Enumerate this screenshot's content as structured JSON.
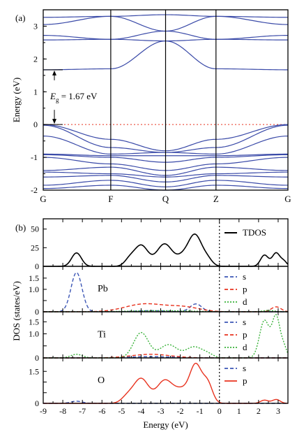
{
  "figure": {
    "panel_a_label": "(a)",
    "panel_b_label": "(b)",
    "colors": {
      "bands": "#3a4aa8",
      "tdos": "#000000",
      "s": "#3b55b5",
      "p": "#e8321e",
      "d": "#3bb33b",
      "fermi_a": "#e8321e",
      "fermi_b": "#000000"
    }
  },
  "chart_data": [
    {
      "type": "line",
      "title": "",
      "xlabel": "",
      "ylabel": "Energy (eV)",
      "ylim": [
        -2,
        3.5
      ],
      "yticks": [
        -2,
        -1,
        0,
        1,
        2,
        3
      ],
      "ytick_labels": [
        "-2",
        "-1",
        "0",
        "1",
        "2",
        "3"
      ],
      "kpath": [
        "G",
        "F",
        "Q",
        "Z",
        "G"
      ],
      "kpath_positions": [
        0,
        0.276,
        0.5,
        0.706,
        1.0
      ],
      "fermi_level": 0,
      "gap_annotation": {
        "label": "E",
        "subscript": "g",
        "value_text": "= 1.67 eV",
        "vbm": 0,
        "cbm": 1.67
      },
      "conduction_bands": [
        {
          "x": [
            0,
            0.276,
            0.5,
            0.706,
            1
          ],
          "y": [
            1.67,
            1.7,
            2.55,
            1.7,
            1.67
          ]
        },
        {
          "x": [
            0,
            0.276,
            0.5,
            0.706,
            1
          ],
          "y": [
            2.58,
            2.6,
            2.55,
            2.6,
            2.58
          ]
        },
        {
          "x": [
            0,
            0.276,
            0.5,
            0.706,
            1
          ],
          "y": [
            2.72,
            2.6,
            2.85,
            2.6,
            2.72
          ]
        },
        {
          "x": [
            0,
            0.276,
            0.5,
            0.706,
            1
          ],
          "y": [
            3.05,
            3.3,
            2.85,
            3.3,
            3.05
          ]
        },
        {
          "x": [
            0,
            0.276,
            0.5,
            0.706,
            1
          ],
          "y": [
            3.27,
            3.3,
            3.35,
            3.3,
            3.27
          ]
        }
      ],
      "valence_bands": [
        {
          "x": [
            0,
            0.276,
            0.5,
            0.706,
            1
          ],
          "y": [
            0,
            -0.45,
            -0.8,
            -0.45,
            0
          ]
        },
        {
          "x": [
            0,
            0.276,
            0.5,
            0.706,
            1
          ],
          "y": [
            -0.02,
            -0.7,
            -0.85,
            -0.7,
            -0.02
          ]
        },
        {
          "x": [
            0,
            0.276,
            0.5,
            0.706,
            1
          ],
          "y": [
            -0.35,
            -0.9,
            -0.85,
            -0.9,
            -0.35
          ]
        },
        {
          "x": [
            0,
            0.276,
            0.5,
            0.706,
            1
          ],
          "y": [
            -0.9,
            -0.95,
            -0.95,
            -0.95,
            -0.9
          ]
        },
        {
          "x": [
            0,
            0.276,
            0.5,
            0.706,
            1
          ],
          "y": [
            -0.92,
            -1.0,
            -1.15,
            -1.0,
            -0.92
          ]
        },
        {
          "x": [
            0,
            0.276,
            0.5,
            0.706,
            1
          ],
          "y": [
            -1.0,
            -1.2,
            -1.4,
            -1.2,
            -1.0
          ]
        },
        {
          "x": [
            0,
            0.276,
            0.5,
            0.706,
            1
          ],
          "y": [
            -1.4,
            -1.3,
            -1.55,
            -1.3,
            -1.4
          ]
        },
        {
          "x": [
            0,
            0.276,
            0.5,
            0.706,
            1
          ],
          "y": [
            -1.45,
            -1.5,
            -1.6,
            -1.5,
            -1.45
          ]
        },
        {
          "x": [
            0,
            0.276,
            0.5,
            0.706,
            1
          ],
          "y": [
            -1.6,
            -1.55,
            -1.75,
            -1.55,
            -1.6
          ]
        },
        {
          "x": [
            0,
            0.276,
            0.5,
            0.706,
            1
          ],
          "y": [
            -1.85,
            -1.7,
            -1.9,
            -1.7,
            -1.85
          ]
        },
        {
          "x": [
            0,
            0.276,
            0.5,
            0.706,
            1
          ],
          "y": [
            -1.95,
            -1.85,
            -2.0,
            -1.85,
            -1.95
          ]
        }
      ]
    },
    {
      "type": "line",
      "title": "",
      "xlabel": "Energy (eV)",
      "ylabel": "DOS (states/eV)",
      "xlim": [
        -9,
        3.5
      ],
      "xticks": [
        -9,
        -8,
        -7,
        -6,
        -5,
        -4,
        -3,
        -2,
        -1,
        0,
        1,
        2,
        3
      ],
      "xtick_labels": [
        "-9",
        "-8",
        "-7",
        "-6",
        "-5",
        "-4",
        "-3",
        "-2",
        "-1",
        "0",
        "1",
        "2",
        "3"
      ],
      "fermi_level": 0,
      "panels": [
        {
          "label": "",
          "ylim": [
            0,
            60
          ],
          "yticks": [
            0,
            25,
            50
          ],
          "ytick_labels": [
            "0",
            "25",
            "50"
          ],
          "series": [
            {
              "name": "TDOS",
              "key": "tdos",
              "peaks": [
                [
                  -7.3,
                  18,
                  0.25
                ],
                [
                  -4.0,
                  28,
                  0.35
                ],
                [
                  -4.6,
                  8,
                  0.25
                ],
                [
                  -2.8,
                  30,
                  0.4
                ],
                [
                  -1.25,
                  42,
                  0.35
                ],
                [
                  -0.6,
                  8,
                  0.25
                ],
                [
                  -1.9,
                  10,
                  0.3
                ],
                [
                  2.3,
                  15,
                  0.2
                ],
                [
                  2.9,
                  18,
                  0.2
                ],
                [
                  3.3,
                  6,
                  0.15
                ]
              ]
            }
          ]
        },
        {
          "label": "Pb",
          "ylim": [
            0,
            1.9
          ],
          "yticks": [
            0,
            0.5,
            1.0,
            1.5
          ],
          "ytick_labels": [
            "0",
            "",
            "1.0",
            "1.5"
          ],
          "series": [
            {
              "name": "s",
              "key": "s",
              "peaks": [
                [
                  -7.3,
                  1.75,
                  0.28
                ],
                [
                  -1.2,
                  0.35,
                  0.3
                ],
                [
                  -3.5,
                  0.05,
                  0.8
                ]
              ]
            },
            {
              "name": "p",
              "key": "p",
              "peaks": [
                [
                  -3.8,
                  0.35,
                  1.0
                ],
                [
                  -1.8,
                  0.2,
                  0.8
                ],
                [
                  2.9,
                  0.22,
                  0.25
                ]
              ]
            },
            {
              "name": "d",
              "key": "d",
              "peaks": [
                [
                  -3.0,
                  0.05,
                  1.5
                ],
                [
                  2.5,
                  0.06,
                  0.3
                ]
              ]
            }
          ]
        },
        {
          "label": "Ti",
          "ylim": [
            0,
            1.8
          ],
          "yticks": [
            0,
            0.5,
            1.0,
            1.5
          ],
          "ytick_labels": [
            "0",
            "",
            "1.0",
            "1.5"
          ],
          "series": [
            {
              "name": "s",
              "key": "s",
              "peaks": [
                [
                  -3.5,
                  0.05,
                  1.2
                ]
              ]
            },
            {
              "name": "p",
              "key": "p",
              "peaks": [
                [
                  -3.5,
                  0.15,
                  1.0
                ]
              ]
            },
            {
              "name": "d",
              "key": "d",
              "peaks": [
                [
                  -4.0,
                  1.05,
                  0.38
                ],
                [
                  -2.6,
                  0.55,
                  0.45
                ],
                [
                  -1.3,
                  0.45,
                  0.4
                ],
                [
                  -0.6,
                  0.15,
                  0.3
                ],
                [
                  -7.3,
                  0.15,
                  0.3
                ],
                [
                  2.3,
                  1.55,
                  0.25
                ],
                [
                  2.9,
                  1.7,
                  0.2
                ],
                [
                  3.3,
                  0.4,
                  0.15
                ]
              ]
            }
          ]
        },
        {
          "label": "O",
          "ylim": [
            0,
            2.0
          ],
          "yticks": [
            0,
            0.5,
            1.0,
            1.5
          ],
          "ytick_labels": [
            "0",
            "",
            "",
            "1.5"
          ],
          "series": [
            {
              "name": "s",
              "key": "s",
              "peaks": [
                [
                  -7.3,
                  0.1,
                  0.3
                ]
              ]
            },
            {
              "name": "p",
              "key": "p",
              "peaks": [
                [
                  -4.0,
                  1.15,
                  0.38
                ],
                [
                  -2.8,
                  1.05,
                  0.4
                ],
                [
                  -1.2,
                  1.7,
                  0.3
                ],
                [
                  -0.6,
                  0.9,
                  0.25
                ],
                [
                  -4.7,
                  0.3,
                  0.3
                ],
                [
                  -1.9,
                  0.6,
                  0.4
                ],
                [
                  2.3,
                  0.15,
                  0.2
                ],
                [
                  2.9,
                  0.18,
                  0.2
                ]
              ]
            }
          ]
        }
      ]
    }
  ]
}
